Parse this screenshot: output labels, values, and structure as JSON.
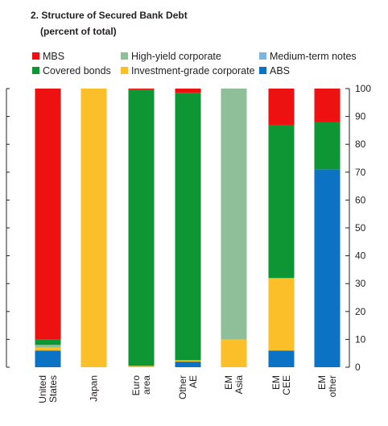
{
  "chart_data": {
    "type": "bar",
    "stacked": true,
    "title": "2. Structure of Secured Bank Debt",
    "subtitle": "(percent of total)",
    "xlabel": "",
    "ylabel": "",
    "ylim": [
      0,
      100
    ],
    "yticks": [
      0,
      10,
      20,
      30,
      40,
      50,
      60,
      70,
      80,
      90,
      100
    ],
    "grid": false,
    "legend_position": "top",
    "categories": [
      "United States",
      "Japan",
      "Euro area",
      "Other AE",
      "EM Asia",
      "EM CEE",
      "EM other"
    ],
    "series": [
      {
        "name": "ABS",
        "color": "#0b72c4",
        "values": [
          6,
          0,
          0,
          2,
          0,
          6,
          71
        ]
      },
      {
        "name": "Medium-term notes",
        "color": "#7fb4dd",
        "values": [
          0,
          0,
          0,
          0,
          0,
          0,
          0
        ]
      },
      {
        "name": "Investment-grade corporate",
        "color": "#fbbf2a",
        "values": [
          1,
          100,
          0.5,
          0.5,
          10,
          26,
          0
        ]
      },
      {
        "name": "High-yield corporate",
        "color": "#8fbf98",
        "values": [
          1,
          0,
          0,
          0,
          90,
          0,
          0
        ]
      },
      {
        "name": "Covered bonds",
        "color": "#0e9634",
        "values": [
          2,
          0,
          99,
          96,
          0,
          55,
          17
        ]
      },
      {
        "name": "MBS",
        "color": "#ee1111",
        "values": [
          90,
          0,
          0.5,
          1.5,
          0,
          13,
          12
        ]
      }
    ]
  },
  "legend": {
    "rows": [
      [
        "MBS",
        "High-yield corporate",
        "Medium-term notes"
      ],
      [
        "Covered bonds",
        "Investment-grade corporate",
        "ABS"
      ]
    ]
  }
}
